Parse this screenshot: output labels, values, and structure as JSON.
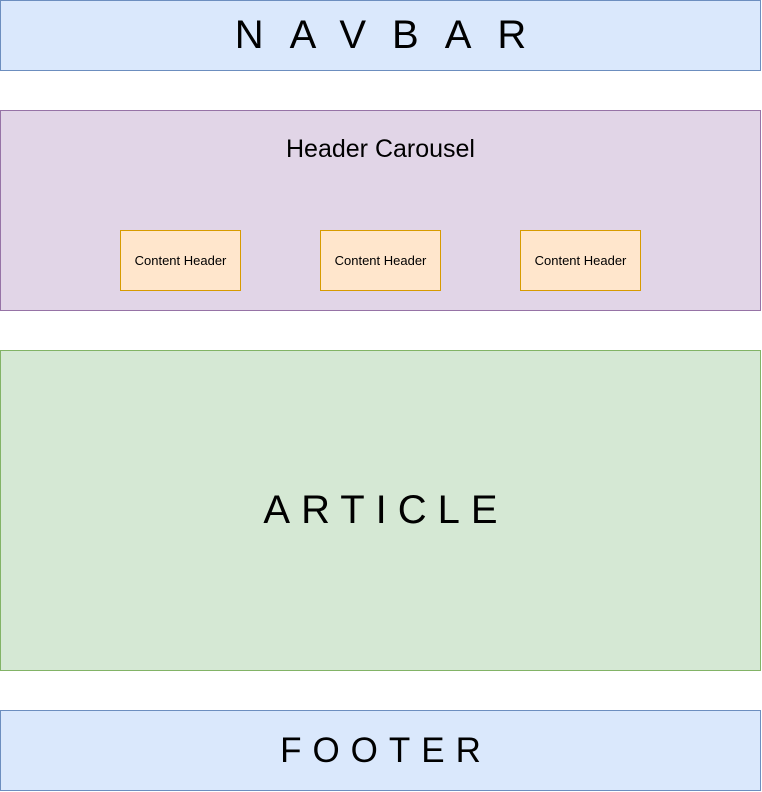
{
  "colors": {
    "navbar_fill": "#dae8fc",
    "navbar_stroke": "#6c8ebf",
    "carousel_fill": "#e1d5e7",
    "carousel_stroke": "#9673a6",
    "content_header_fill": "#ffe6cc",
    "content_header_stroke": "#d79b00",
    "article_fill": "#d5e8d4",
    "article_stroke": "#82b366",
    "footer_fill": "#dae8fc",
    "footer_stroke": "#6c8ebf"
  },
  "navbar": {
    "label": "NAVBAR"
  },
  "carousel": {
    "title": "Header Carousel",
    "items": [
      {
        "label": "Content Header"
      },
      {
        "label": "Content Header"
      },
      {
        "label": "Content Header"
      }
    ]
  },
  "article": {
    "label": "ARTICLE"
  },
  "footer": {
    "label": "FOOTER"
  }
}
